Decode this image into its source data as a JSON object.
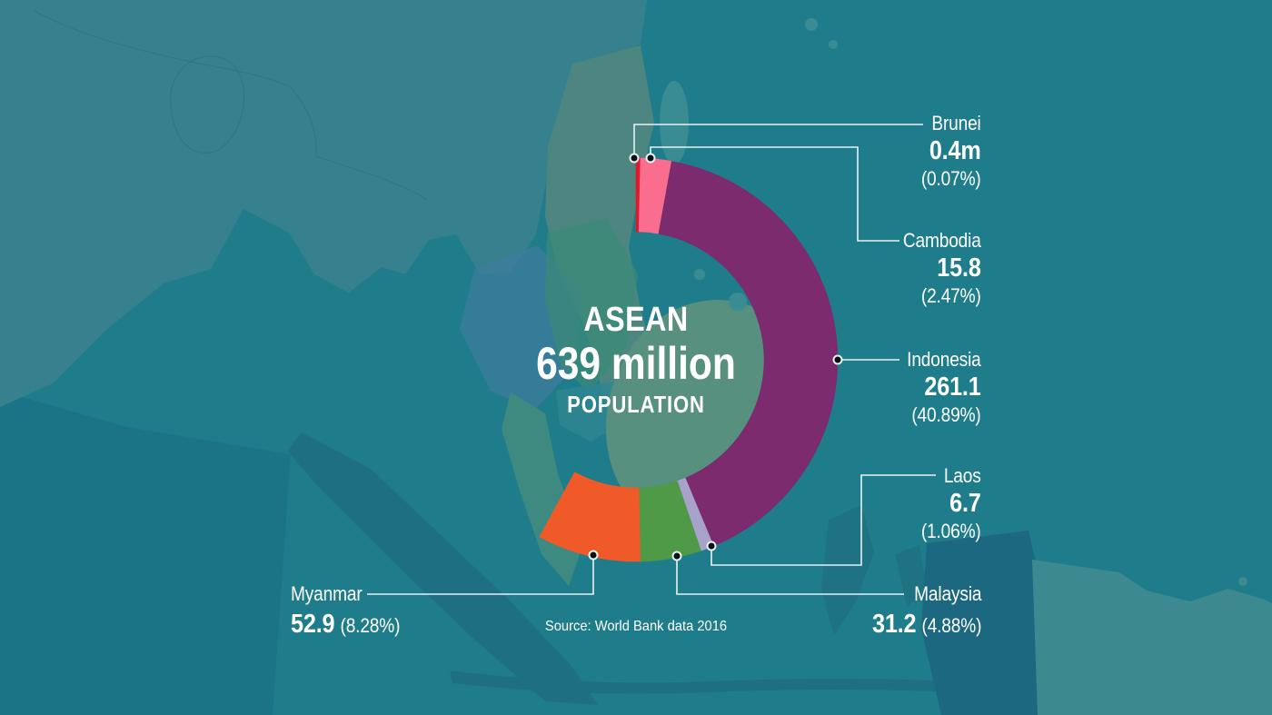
{
  "palette": {
    "sea": "#1F7D8B",
    "sea_shade": "#1A7285",
    "land_light": "#36818D",
    "land_border": "#2B7682",
    "land_myanmar": "#4D8681",
    "land_thailand": "#3F7CA0",
    "land_laos_vietnam": "#3B8A78",
    "land_cambodia": "#2F8590",
    "land_peninsula": "#3F8A80",
    "land_islands_dark": "#1E6F82",
    "land_borneo": "#57907E",
    "land_sulawesi": "#1E7080",
    "land_philippines": "#3A8C93",
    "land_west_papua": "#1C6880",
    "land_png": "#3C898F",
    "leader_line": "#E8F2F2",
    "dot_fill": "#0C1117",
    "text": "#FFFFFF"
  },
  "center": {
    "region": "ASEAN",
    "value": "639 million",
    "caption": "POPULATION"
  },
  "source": "Source: World Bank data 2016",
  "chart_data": {
    "type": "pie",
    "subtype": "partial-donut",
    "title": "ASEAN 639 million POPULATION",
    "categories": [
      "Brunei",
      "Cambodia",
      "Indonesia",
      "Laos",
      "Malaysia",
      "Myanmar"
    ],
    "values": [
      0.4,
      15.8,
      261.1,
      6.7,
      31.2,
      52.9
    ],
    "percentages": [
      0.07,
      2.47,
      40.89,
      1.06,
      4.88,
      8.28
    ],
    "value_labels": [
      "0.4m",
      "15.8",
      "261.1",
      "6.7",
      "31.2",
      "52.9"
    ],
    "percent_labels": [
      "(0.07%)",
      "(2.47%)",
      "(40.89%)",
      "(1.06%)",
      "(4.88%)",
      "(8.28%)"
    ],
    "colors": [
      "#DD1A2E",
      "#F96E8F",
      "#7B2B6E",
      "#A8A2CB",
      "#4E9A46",
      "#F05A28"
    ],
    "center_label": {
      "region": "ASEAN",
      "value": "639 million",
      "caption": "POPULATION"
    },
    "start_angle_deg": 0,
    "direction": "clockwise",
    "shown_arc_pct": 57.65,
    "legend_position": "callouts (right column + bottom-left)",
    "source": "Source: World Bank data 2016"
  }
}
